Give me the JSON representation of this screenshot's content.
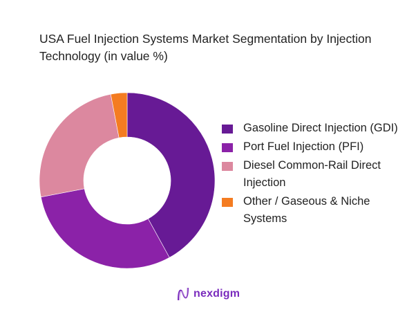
{
  "title": "USA Fuel Injection Systems Market Segmentation by Injection Technology (in value %)",
  "legend": [
    {
      "label": "Gasoline Direct Injection (GDI)",
      "color": "#671A95"
    },
    {
      "label": "Port Fuel Injection (PFI)",
      "color": "#8B22A8"
    },
    {
      "label": "Diesel Common-Rail Direct Injection",
      "color": "#DC889F"
    },
    {
      "label": "Other / Gaseous & Niche Systems",
      "color": "#F47C21"
    }
  ],
  "logo": {
    "text": "nexdigm",
    "icon": "nexdigm-wave-logo-icon"
  },
  "chart_data": {
    "type": "pie",
    "subtype": "donut",
    "title": "USA Fuel Injection Systems Market Segmentation by Injection Technology (in value %)",
    "categories": [
      "Gasoline Direct Injection (GDI)",
      "Port Fuel Injection (PFI)",
      "Diesel Common-Rail Direct Injection",
      "Other / Gaseous & Niche Systems"
    ],
    "values": [
      42,
      30,
      25,
      3
    ],
    "colors": [
      "#671A95",
      "#8B22A8",
      "#DC889F",
      "#F47C21"
    ],
    "start_angle": "12 o'clock, clockwise",
    "legend_position": "right",
    "data_labels": false
  }
}
